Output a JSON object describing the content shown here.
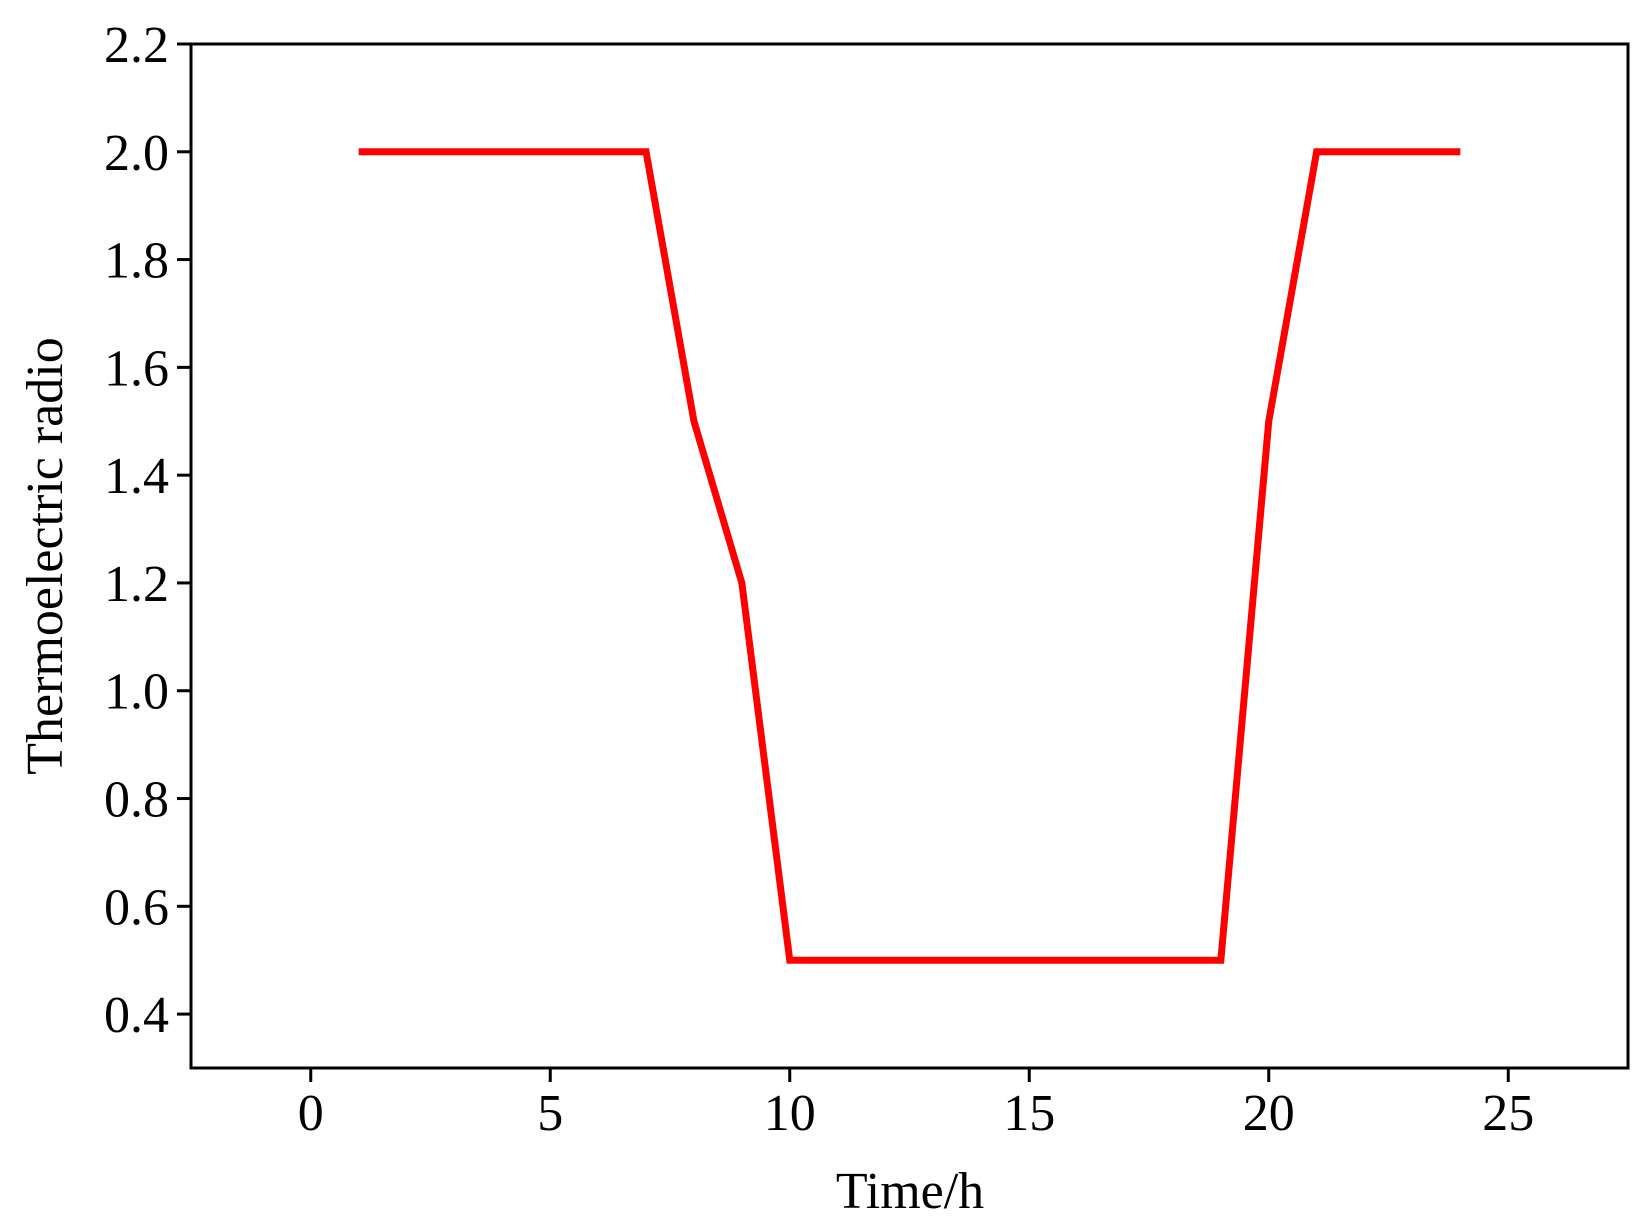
{
  "chart_data": {
    "type": "line",
    "x_label": "Time/h",
    "y_label": "Thermoelectric radio",
    "x": [
      1,
      2,
      3,
      4,
      5,
      6,
      7,
      8,
      9,
      10,
      11,
      12,
      13,
      14,
      15,
      16,
      17,
      18,
      19,
      20,
      21,
      22,
      23,
      24
    ],
    "series": [
      {
        "color": "#ff0000",
        "values": [
          2.0,
          2.0,
          2.0,
          2.0,
          2.0,
          2.0,
          2.0,
          1.5,
          1.2,
          0.5,
          0.5,
          0.5,
          0.5,
          0.5,
          0.5,
          0.5,
          0.5,
          0.5,
          0.5,
          1.5,
          2.0,
          2.0,
          2.0,
          2.0
        ]
      }
    ],
    "xlim": [
      -2.5,
      27.5
    ],
    "xticks": [
      0,
      5,
      10,
      15,
      20,
      25
    ],
    "ylim": [
      0.3,
      2.2
    ],
    "yticks": [
      {
        "value": 0.4,
        "label": "0.4"
      },
      {
        "value": 0.6,
        "label": "0.6"
      },
      {
        "value": 0.8,
        "label": "0.8"
      },
      {
        "value": 1.0,
        "label": "1.0"
      },
      {
        "value": 1.2,
        "label": "1.2"
      },
      {
        "value": 1.4,
        "label": "1.4"
      },
      {
        "value": 1.6,
        "label": "1.6"
      },
      {
        "value": 1.8,
        "label": "1.8"
      },
      {
        "value": 2.0,
        "label": "2.0"
      },
      {
        "value": 2.2,
        "label": "2.2"
      }
    ],
    "grid": false
  }
}
